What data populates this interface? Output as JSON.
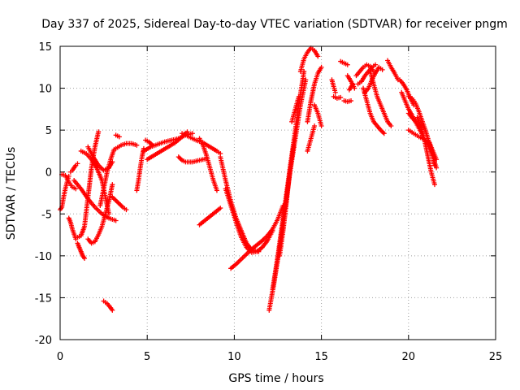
{
  "chart_data": {
    "type": "scatter",
    "title": "Day 337 of 2025, Sidereal Day-to-day VTEC variation (SDTVAR) for receiver pngm",
    "xlabel": "GPS time / hours",
    "ylabel": "SDTVAR / TECUs",
    "xlim": [
      0,
      25
    ],
    "ylim": [
      -20,
      15
    ],
    "xticks": [
      0,
      5,
      10,
      15,
      20,
      25
    ],
    "yticks": [
      -20,
      -15,
      -10,
      -5,
      0,
      5,
      10,
      15
    ],
    "grid": true,
    "marker": "+",
    "color": "#ff0000",
    "series": [
      {
        "x": [
          0.0,
          0.1,
          0.2,
          0.3,
          0.4,
          0.5
        ],
        "y": [
          -4.5,
          -4.2,
          -3.0,
          -2.0,
          -1.2,
          -0.5
        ]
      },
      {
        "x": [
          0.1,
          0.3,
          0.5,
          0.7,
          0.9
        ],
        "y": [
          -0.3,
          -0.4,
          -1.2,
          -1.8,
          -2.0
        ]
      },
      {
        "x": [
          0.5,
          0.6,
          0.7,
          0.8,
          0.9
        ],
        "y": [
          -5.5,
          -6.0,
          -6.8,
          -7.4,
          -8.0
        ]
      },
      {
        "x": [
          0.6,
          0.7,
          0.8,
          0.9,
          1.0
        ],
        "y": [
          0.0,
          0.2,
          0.5,
          0.8,
          1.0
        ]
      },
      {
        "x": [
          1.0,
          1.2,
          1.4,
          1.6,
          1.8,
          2.0,
          2.2
        ],
        "y": [
          -7.8,
          -7.6,
          -6.5,
          -3.0,
          0.5,
          3.0,
          4.8
        ]
      },
      {
        "x": [
          1.0,
          1.1,
          1.2,
          1.3,
          1.4
        ],
        "y": [
          -8.5,
          -9.0,
          -9.5,
          -10.0,
          -10.3
        ]
      },
      {
        "x": [
          0.8,
          1.2,
          1.6,
          2.0,
          2.4,
          2.8,
          3.2
        ],
        "y": [
          -1.0,
          -2.0,
          -3.2,
          -4.2,
          -5.0,
          -5.5,
          -5.8
        ]
      },
      {
        "x": [
          1.2,
          1.5,
          1.8,
          2.1,
          2.4,
          2.6,
          2.8
        ],
        "y": [
          2.5,
          2.2,
          1.5,
          0.5,
          -1.0,
          -3.0,
          -5.0
        ]
      },
      {
        "x": [
          1.6,
          1.9,
          2.2,
          2.5,
          2.8,
          3.0
        ],
        "y": [
          3.0,
          1.8,
          0.8,
          0.2,
          0.5,
          1.2
        ]
      },
      {
        "x": [
          1.6,
          1.8,
          2.0,
          2.2,
          2.4,
          2.6,
          2.8,
          3.0
        ],
        "y": [
          -8.0,
          -8.5,
          -8.3,
          -7.5,
          -6.5,
          -5.0,
          -3.5,
          -1.5
        ]
      },
      {
        "x": [
          2.3,
          2.5,
          2.7,
          2.9,
          3.1
        ],
        "y": [
          -4.0,
          -2.0,
          0.0,
          1.5,
          2.7
        ]
      },
      {
        "x": [
          2.5,
          2.7,
          2.9,
          3.0
        ],
        "y": [
          -15.4,
          -15.7,
          -16.2,
          -16.5
        ]
      },
      {
        "x": [
          3.0,
          3.2,
          3.4,
          3.6,
          3.8
        ],
        "y": [
          -3.0,
          -3.4,
          -3.8,
          -4.2,
          -4.5
        ]
      },
      {
        "x": [
          3.2,
          3.5,
          3.8,
          4.1,
          4.4
        ],
        "y": [
          2.8,
          3.2,
          3.4,
          3.4,
          3.2
        ]
      },
      {
        "x": [
          3.2,
          3.4
        ],
        "y": [
          4.4,
          4.2
        ]
      },
      {
        "x": [
          4.4,
          4.5,
          4.6,
          4.7,
          4.8
        ],
        "y": [
          -2.2,
          -1.0,
          0.5,
          1.8,
          2.8
        ]
      },
      {
        "x": [
          4.8,
          5.2,
          5.6,
          6.0,
          6.4,
          6.8,
          7.2,
          7.6
        ],
        "y": [
          2.5,
          3.0,
          3.3,
          3.6,
          3.8,
          4.0,
          4.4,
          4.6
        ]
      },
      {
        "x": [
          5.0,
          5.4,
          5.8,
          6.2,
          6.6,
          7.0,
          7.3
        ],
        "y": [
          1.5,
          2.0,
          2.5,
          3.0,
          3.5,
          4.2,
          4.8
        ]
      },
      {
        "x": [
          4.9,
          5.1,
          5.3
        ],
        "y": [
          3.8,
          3.6,
          3.2
        ]
      },
      {
        "x": [
          7.0,
          7.4,
          7.8,
          8.2,
          8.6,
          9.0,
          9.2
        ],
        "y": [
          4.6,
          4.2,
          3.8,
          3.5,
          3.0,
          2.5,
          2.2
        ]
      },
      {
        "x": [
          6.8,
          7.0,
          7.2,
          7.6,
          8.0,
          8.4
        ],
        "y": [
          1.8,
          1.4,
          1.2,
          1.2,
          1.4,
          1.6
        ]
      },
      {
        "x": [
          8.0,
          8.2,
          8.4,
          8.6,
          8.8,
          9.0
        ],
        "y": [
          4.0,
          3.2,
          2.0,
          0.5,
          -1.0,
          -2.2
        ]
      },
      {
        "x": [
          8.0,
          8.3,
          8.6,
          8.9,
          9.2
        ],
        "y": [
          -6.3,
          -5.8,
          -5.3,
          -4.8,
          -4.3
        ]
      },
      {
        "x": [
          9.2,
          9.5,
          9.8,
          10.1,
          10.4,
          10.7,
          11.0,
          11.4
        ],
        "y": [
          1.8,
          -1.0,
          -3.5,
          -5.5,
          -7.0,
          -8.5,
          -9.3,
          -9.5
        ]
      },
      {
        "x": [
          9.5,
          9.8,
          10.1,
          10.4,
          10.7,
          11.0,
          11.3,
          11.6,
          11.9,
          12.2
        ],
        "y": [
          -2.0,
          -4.0,
          -6.0,
          -7.8,
          -9.0,
          -9.6,
          -9.5,
          -9.0,
          -8.2,
          -7.0
        ]
      },
      {
        "x": [
          9.8,
          10.1,
          10.4,
          10.7,
          11.0,
          11.3,
          11.6,
          11.9,
          12.2,
          12.5,
          12.8
        ],
        "y": [
          -11.5,
          -11.0,
          -10.4,
          -9.8,
          -9.2,
          -8.7,
          -8.2,
          -7.6,
          -6.8,
          -5.6,
          -4.0
        ]
      },
      {
        "x": [
          12.0,
          12.3,
          12.6,
          12.9,
          13.2,
          13.5,
          13.8,
          14.1
        ],
        "y": [
          -16.5,
          -13.0,
          -9.0,
          -4.5,
          0.0,
          4.0,
          8.0,
          11.0
        ]
      },
      {
        "x": [
          12.2,
          12.5,
          12.8,
          13.1,
          13.4,
          13.7,
          14.0
        ],
        "y": [
          -14.0,
          -10.0,
          -5.5,
          -1.0,
          3.5,
          8.0,
          12.0
        ]
      },
      {
        "x": [
          12.6,
          12.8,
          13.0,
          13.2,
          13.4
        ],
        "y": [
          -10.0,
          -7.0,
          -3.5,
          0.5,
          3.0
        ]
      },
      {
        "x": [
          13.3,
          13.5,
          13.7
        ],
        "y": [
          6.0,
          7.5,
          9.0
        ]
      },
      {
        "x": [
          13.8,
          14.0,
          14.2,
          14.4,
          14.6,
          14.8
        ],
        "y": [
          12.0,
          13.5,
          14.3,
          14.8,
          14.5,
          13.8
        ]
      },
      {
        "x": [
          14.2,
          14.4,
          14.6,
          14.8,
          15.0
        ],
        "y": [
          6.0,
          8.5,
          10.5,
          11.8,
          12.5
        ]
      },
      {
        "x": [
          14.2,
          14.4,
          14.6
        ],
        "y": [
          2.5,
          4.0,
          5.5
        ]
      },
      {
        "x": [
          14.6,
          14.8,
          15.0
        ],
        "y": [
          8.0,
          7.0,
          5.5
        ]
      },
      {
        "x": [
          15.6,
          15.7,
          15.8
        ],
        "y": [
          11.0,
          10.2,
          9.5
        ]
      },
      {
        "x": [
          15.7,
          15.9,
          16.1
        ],
        "y": [
          9.0,
          8.8,
          8.9
        ]
      },
      {
        "x": [
          16.1,
          16.3,
          16.5
        ],
        "y": [
          13.2,
          13.0,
          12.8
        ]
      },
      {
        "x": [
          16.5,
          16.7,
          16.9
        ],
        "y": [
          11.5,
          10.8,
          10.0
        ]
      },
      {
        "x": [
          16.6,
          16.8
        ],
        "y": [
          9.8,
          10.5
        ]
      },
      {
        "x": [
          16.3,
          16.5,
          16.7
        ],
        "y": [
          8.5,
          8.4,
          8.5
        ]
      },
      {
        "x": [
          17.0,
          17.2,
          17.4,
          17.6,
          17.8,
          18.0
        ],
        "y": [
          11.5,
          12.0,
          12.5,
          12.8,
          12.6,
          12.0
        ]
      },
      {
        "x": [
          17.1,
          17.3,
          17.5,
          17.7,
          17.9,
          18.1
        ],
        "y": [
          10.5,
          10.8,
          11.5,
          12.0,
          12.5,
          12.8
        ]
      },
      {
        "x": [
          17.5,
          17.7,
          17.9,
          18.1,
          18.3,
          18.5
        ],
        "y": [
          9.5,
          10.0,
          11.0,
          11.8,
          12.5,
          12.2
        ]
      },
      {
        "x": [
          17.4,
          17.6,
          17.8,
          18.0,
          18.2,
          18.4,
          18.6
        ],
        "y": [
          10.0,
          8.5,
          7.0,
          6.0,
          5.5,
          5.0,
          4.6
        ]
      },
      {
        "x": [
          17.8,
          18.0,
          18.2,
          18.4,
          18.6,
          18.8,
          19.0
        ],
        "y": [
          12.0,
          10.5,
          9.0,
          8.0,
          7.0,
          6.0,
          5.5
        ]
      },
      {
        "x": [
          18.8,
          19.0,
          19.2,
          19.4
        ],
        "y": [
          13.3,
          12.5,
          11.8,
          11.0
        ]
      },
      {
        "x": [
          19.5,
          19.7,
          19.9,
          20.1,
          20.3
        ],
        "y": [
          11.0,
          10.5,
          9.8,
          8.8,
          8.0
        ]
      },
      {
        "x": [
          19.6,
          19.8,
          20.0,
          20.2,
          20.4,
          20.6,
          20.8,
          21.0,
          21.2,
          21.4,
          21.6
        ],
        "y": [
          9.5,
          8.5,
          7.5,
          6.8,
          6.0,
          5.2,
          4.4,
          3.6,
          2.8,
          1.8,
          0.5
        ]
      },
      {
        "x": [
          20.0,
          20.2,
          20.4,
          20.6,
          20.8,
          21.0,
          21.2,
          21.4,
          21.5
        ],
        "y": [
          9.0,
          8.8,
          8.2,
          7.2,
          6.0,
          4.8,
          3.4,
          2.0,
          0.8
        ]
      },
      {
        "x": [
          20.0,
          20.3,
          20.6,
          20.9,
          21.2,
          21.4,
          21.6
        ],
        "y": [
          5.0,
          4.6,
          4.2,
          3.9,
          3.5,
          2.5,
          1.5
        ]
      },
      {
        "x": [
          20.5,
          20.7,
          20.9,
          21.1,
          21.3,
          21.5
        ],
        "y": [
          6.5,
          5.5,
          4.0,
          2.0,
          0.0,
          -1.5
        ]
      },
      {
        "x": [
          20.0,
          20.2,
          20.4
        ],
        "y": [
          7.0,
          6.5,
          6.0
        ]
      }
    ]
  }
}
